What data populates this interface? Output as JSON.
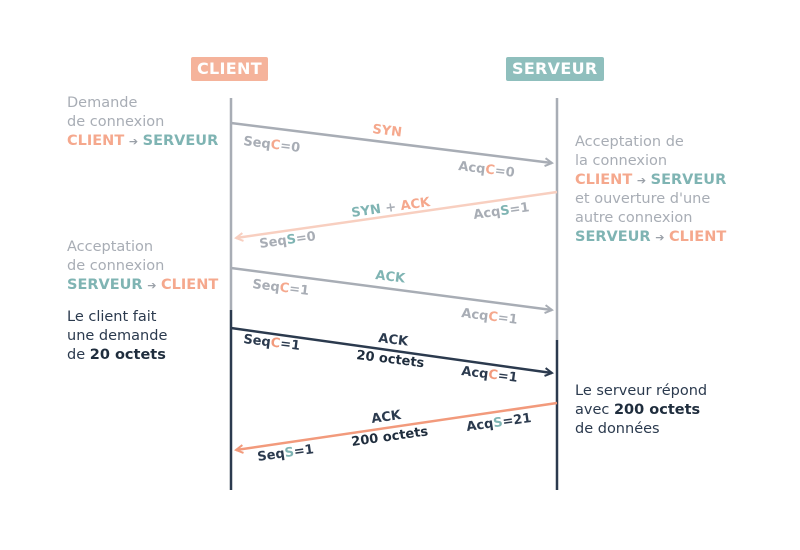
{
  "headers": {
    "client": "CLIENT",
    "server": "SERVEUR"
  },
  "notes": {
    "demande": {
      "line1": "Demande",
      "line2": "de connexion",
      "from": "CLIENT",
      "arrow": "➔",
      "to": "SERVEUR"
    },
    "acceptation_serveur": {
      "line1": "Acceptation de",
      "line2": "la connexion",
      "from": "CLIENT",
      "arrow": "➔",
      "to": "SERVEUR",
      "line4": "et ouverture d'une",
      "line5": "autre connexion",
      "from2": "SERVEUR",
      "arrow2": "➔",
      "to2": "CLIENT"
    },
    "acceptation_client": {
      "line1": "Acceptation",
      "line2": "de connexion",
      "from": "SERVEUR",
      "arrow": "➔",
      "to": "CLIENT"
    },
    "client_demande": {
      "line1": "Le client fait",
      "line2": "une demande",
      "prefix": "de ",
      "bold": "20 octets"
    },
    "serveur_repond": {
      "line1": "Le serveur répond",
      "prefix": "avec ",
      "bold": "200 octets",
      "line3": "de données"
    }
  },
  "messages": [
    {
      "label": "SYN",
      "seq_prefix": "Seq",
      "seq_letter": "C",
      "seq_suffix": "=0",
      "acq_prefix": "Acq",
      "acq_letter": "C",
      "acq_suffix": "=0"
    },
    {
      "label_a": "SYN",
      "label_plus": " + ",
      "label_b": "ACK",
      "acq_prefix": "Acq",
      "acq_letter": "S",
      "acq_suffix": "=1",
      "seq_prefix": "Seq",
      "seq_letter": "S",
      "seq_suffix": "=0"
    },
    {
      "label": "ACK",
      "seq_prefix": "Seq",
      "seq_letter": "C",
      "seq_suffix": "=1",
      "acq_prefix": "Acq",
      "acq_letter": "C",
      "acq_suffix": "=1"
    },
    {
      "label": "ACK",
      "payload": "20 octets",
      "seq_prefix": "Seq",
      "seq_letter": "C",
      "seq_suffix": "=1",
      "acq_prefix": "Acq",
      "acq_letter": "C",
      "acq_suffix": "=1"
    },
    {
      "label": "ACK",
      "payload": "200 octets",
      "acq_prefix": "Acq",
      "acq_letter": "S",
      "acq_suffix": "=21",
      "seq_prefix": "Seq",
      "seq_letter": "S",
      "seq_suffix": "=1"
    }
  ],
  "colors": {
    "client": "#f5b39b",
    "server": "#8fbfbd",
    "grey": "#a8adb5",
    "navy": "#2b3a4e",
    "salmon": "#f29a7c",
    "pale_salmon": "#f8cfc0"
  }
}
